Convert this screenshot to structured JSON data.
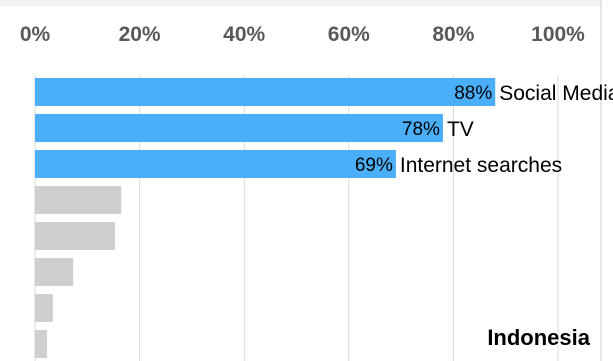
{
  "chart_data": {
    "type": "bar",
    "orientation": "horizontal",
    "title": "Indonesia",
    "xlim": [
      0,
      100
    ],
    "x_ticks": [
      "0%",
      "20%",
      "40%",
      "60%",
      "80%",
      "100%"
    ],
    "grid": true,
    "categories": [
      "Social Media",
      "TV",
      "Internet searches",
      "",
      "",
      "",
      "",
      ""
    ],
    "values": [
      88,
      78,
      69,
      null,
      null,
      null,
      null,
      null
    ],
    "value_labels": [
      "88%",
      "78%",
      "69%",
      "",
      "",
      "",
      "",
      ""
    ],
    "approx_unlabeled_values": [
      16.5,
      15.3,
      7.3,
      3.4,
      2.3
    ],
    "colors": {
      "highlight": "#4AAEF8",
      "muted": "#D0CFCF",
      "grid": "#D9D9D9",
      "tick": "#595959"
    }
  }
}
